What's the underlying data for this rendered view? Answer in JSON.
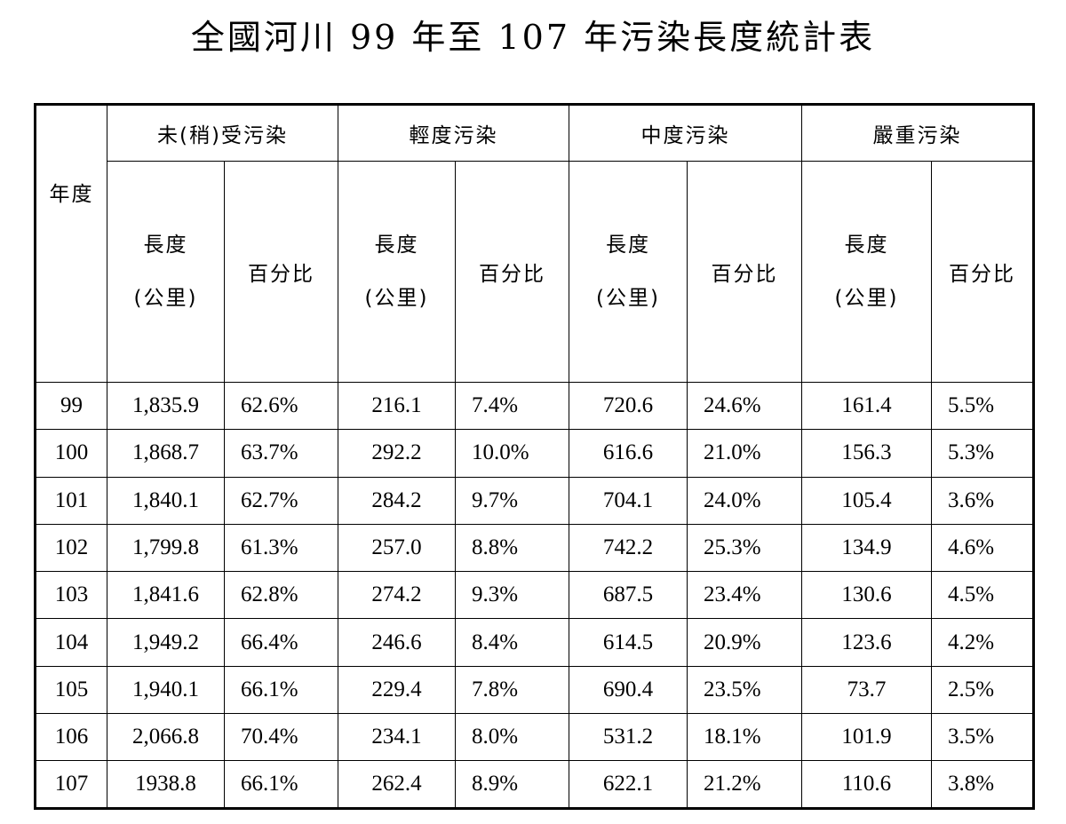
{
  "title": "全國河川 99 年至 107 年污染長度統計表",
  "headers": {
    "year": "年度",
    "groups": [
      "未(稍)受污染",
      "輕度污染",
      "中度污染",
      "嚴重污染"
    ],
    "length_line1": "長度",
    "length_line2": "(公里)",
    "percent": "百分比"
  },
  "rows": [
    {
      "year": "99",
      "cells": [
        "1,835.9",
        "62.6%",
        "216.1",
        "7.4%",
        "720.6",
        "24.6%",
        "161.4",
        "5.5%"
      ]
    },
    {
      "year": "100",
      "cells": [
        "1,868.7",
        "63.7%",
        "292.2",
        "10.0%",
        "616.6",
        "21.0%",
        "156.3",
        "5.3%"
      ]
    },
    {
      "year": "101",
      "cells": [
        "1,840.1",
        "62.7%",
        "284.2",
        "9.7%",
        "704.1",
        "24.0%",
        "105.4",
        "3.6%"
      ]
    },
    {
      "year": "102",
      "cells": [
        "1,799.8",
        "61.3%",
        "257.0",
        "8.8%",
        "742.2",
        "25.3%",
        "134.9",
        "4.6%"
      ]
    },
    {
      "year": "103",
      "cells": [
        "1,841.6",
        "62.8%",
        "274.2",
        "9.3%",
        "687.5",
        "23.4%",
        "130.6",
        "4.5%"
      ]
    },
    {
      "year": "104",
      "cells": [
        "1,949.2",
        "66.4%",
        "246.6",
        "8.4%",
        "614.5",
        "20.9%",
        "123.6",
        "4.2%"
      ]
    },
    {
      "year": "105",
      "cells": [
        "1,940.1",
        "66.1%",
        "229.4",
        "7.8%",
        "690.4",
        "23.5%",
        "73.7",
        "2.5%"
      ]
    },
    {
      "year": "106",
      "cells": [
        "2,066.8",
        "70.4%",
        "234.1",
        "8.0%",
        "531.2",
        "18.1%",
        "101.9",
        "3.5%"
      ]
    },
    {
      "year": "107",
      "cells": [
        "1938.8",
        "66.1%",
        "262.4",
        "8.9%",
        "622.1",
        "21.2%",
        "110.6",
        "3.8%"
      ]
    }
  ]
}
